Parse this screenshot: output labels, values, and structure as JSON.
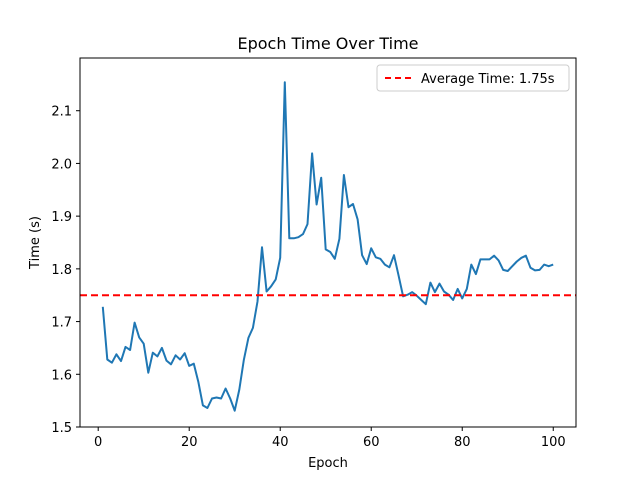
{
  "chart_data": {
    "type": "line",
    "title": "Epoch Time Over Time",
    "xlabel": "Epoch",
    "ylabel": "Time (s)",
    "xlim": [
      -4,
      105
    ],
    "ylim": [
      1.5,
      2.2
    ],
    "xticks": [
      0,
      20,
      40,
      60,
      80,
      100
    ],
    "yticks": [
      1.5,
      1.6,
      1.7,
      1.8,
      1.9,
      2.0,
      2.1
    ],
    "ytick_labels": [
      "1.5",
      "1.6",
      "1.7",
      "1.8",
      "1.9",
      "2.0",
      "2.1"
    ],
    "grid": false,
    "legend_position": "top-right",
    "series": [
      {
        "color": "#1f77b4",
        "x": [
          1,
          2,
          3,
          4,
          5,
          6,
          7,
          8,
          9,
          10,
          11,
          12,
          13,
          14,
          15,
          16,
          17,
          18,
          19,
          20,
          21,
          22,
          23,
          24,
          25,
          26,
          27,
          28,
          29,
          30,
          31,
          32,
          33,
          34,
          35,
          36,
          37,
          38,
          39,
          40,
          41,
          42,
          43,
          44,
          45,
          46,
          47,
          48,
          49,
          50,
          51,
          52,
          53,
          54,
          55,
          56,
          57,
          58,
          59,
          60,
          61,
          62,
          63,
          64,
          65,
          66,
          67,
          68,
          69,
          70,
          71,
          72,
          73,
          74,
          75,
          76,
          77,
          78,
          79,
          80,
          81,
          82,
          83,
          84,
          85,
          86,
          87,
          88,
          89,
          90,
          91,
          92,
          93,
          94,
          95,
          96,
          97,
          98,
          99,
          100
        ],
        "y": [
          1.728,
          1.628,
          1.622,
          1.638,
          1.625,
          1.652,
          1.646,
          1.698,
          1.67,
          1.658,
          1.603,
          1.641,
          1.634,
          1.65,
          1.626,
          1.619,
          1.636,
          1.628,
          1.64,
          1.616,
          1.62,
          1.586,
          1.541,
          1.536,
          1.554,
          1.556,
          1.554,
          1.573,
          1.554,
          1.531,
          1.571,
          1.627,
          1.669,
          1.688,
          1.738,
          1.841,
          1.757,
          1.767,
          1.78,
          1.821,
          2.154,
          1.858,
          1.858,
          1.86,
          1.866,
          1.885,
          2.019,
          1.922,
          1.973,
          1.837,
          1.832,
          1.819,
          1.857,
          1.978,
          1.917,
          1.923,
          1.894,
          1.826,
          1.809,
          1.839,
          1.822,
          1.819,
          1.808,
          1.803,
          1.826,
          1.788,
          1.748,
          1.751,
          1.756,
          1.749,
          1.741,
          1.733,
          1.774,
          1.756,
          1.772,
          1.757,
          1.751,
          1.741,
          1.762,
          1.744,
          1.762,
          1.808,
          1.79,
          1.818,
          1.818,
          1.818,
          1.825,
          1.816,
          1.798,
          1.796,
          1.805,
          1.814,
          1.821,
          1.825,
          1.802,
          1.797,
          1.798,
          1.808,
          1.805,
          1.808
        ]
      },
      {
        "name": "Average Time: 1.75s",
        "color": "#ff0000",
        "constant_y": 1.75,
        "style": "dashed"
      }
    ]
  }
}
